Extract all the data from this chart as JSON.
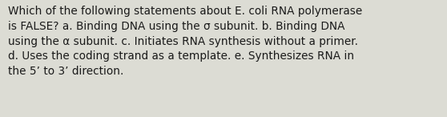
{
  "text": "Which of the following statements about E. coli RNA polymerase\nis FALSE? a. Binding DNA using the σ subunit. b. Binding DNA\nusing the α subunit. c. Initiates RNA synthesis without a primer.\nd. Uses the coding strand as a template. e. Synthesizes RNA in\nthe 5’ to 3’ direction.",
  "background_color": "#dcdcd4",
  "text_color": "#1a1a1a",
  "font_size": 9.8,
  "fig_width": 5.58,
  "fig_height": 1.46,
  "dpi": 100
}
